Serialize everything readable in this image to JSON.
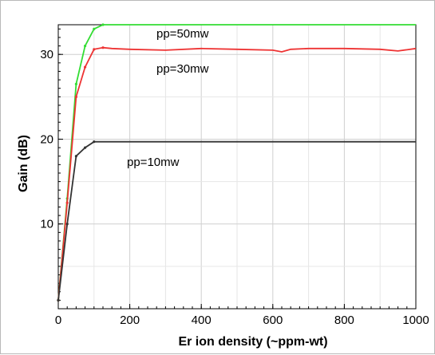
{
  "chart_data": {
    "type": "line",
    "title": "",
    "xlabel": "Er ion density (~ppm-wt)",
    "ylabel": "Gain (dB)",
    "xlim": [
      0,
      1000
    ],
    "ylim": [
      0,
      33.5
    ],
    "x_ticks": [
      "0",
      "200",
      "400",
      "600",
      "800",
      "1000"
    ],
    "y_ticks": [
      "10",
      "20",
      "30"
    ],
    "grid": true,
    "series": [
      {
        "name": "pp=50mw",
        "color": "#33dd33",
        "x": [
          0,
          25,
          50,
          75,
          100,
          125,
          150,
          200,
          300,
          400,
          500,
          600,
          700,
          800,
          900,
          1000
        ],
        "y": [
          1.0,
          13.0,
          26.5,
          31.0,
          33.0,
          33.5,
          33.5,
          33.5,
          33.5,
          33.5,
          33.5,
          33.5,
          33.5,
          33.5,
          33.5,
          33.5
        ]
      },
      {
        "name": "pp=30mw",
        "color": "#ee3333",
        "x": [
          0,
          25,
          50,
          75,
          100,
          125,
          150,
          200,
          300,
          400,
          500,
          600,
          625,
          650,
          700,
          800,
          900,
          950,
          1000
        ],
        "y": [
          1.0,
          12.5,
          25.0,
          28.5,
          30.6,
          30.8,
          30.7,
          30.6,
          30.5,
          30.7,
          30.6,
          30.5,
          30.3,
          30.6,
          30.7,
          30.7,
          30.6,
          30.4,
          30.7
        ]
      },
      {
        "name": "pp=10mw",
        "color": "#333333",
        "x": [
          0,
          25,
          50,
          75,
          100,
          200,
          300,
          400,
          500,
          600,
          700,
          800,
          900,
          1000
        ],
        "y": [
          1.0,
          10.0,
          18.0,
          19.0,
          19.7,
          19.7,
          19.7,
          19.7,
          19.7,
          19.7,
          19.7,
          19.7,
          19.7,
          19.7
        ]
      }
    ]
  }
}
